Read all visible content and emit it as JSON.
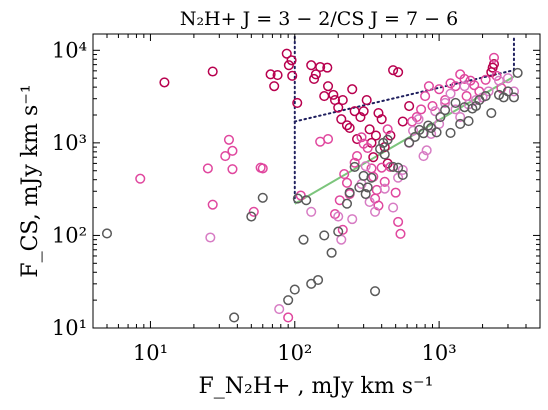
{
  "chart_data": {
    "type": "scatter",
    "title": "N₂H+ J = 3 − 2/CS J = 7 − 6",
    "xlabel": "F_N₂H+ , mJy km s⁻¹",
    "ylabel": "F_CS, mJy km s⁻¹",
    "xscale": "log",
    "yscale": "log",
    "xlim": [
      4,
      5000
    ],
    "ylim": [
      10,
      15000
    ],
    "xticks": [
      10,
      100,
      1000
    ],
    "xtick_labels": [
      "10¹",
      "10²",
      "10³"
    ],
    "yticks": [
      10,
      100,
      1000,
      10000
    ],
    "ytick_labels": [
      "10¹",
      "10²",
      "10³",
      "10⁴"
    ],
    "grid": false,
    "colors": {
      "crimson": "#b8004e",
      "pink": "#e0479e",
      "lightpink": "#d77cc4",
      "gray": "#5a5a5a",
      "fit_line": "#7cc57c",
      "dotted": "#1f1f5e"
    },
    "series": [
      {
        "color": "crimson",
        "points": [
          [
            12.5,
            4500
          ],
          [
            27,
            5900
          ],
          [
            68,
            5500
          ],
          [
            72,
            4100
          ],
          [
            76,
            5400
          ],
          [
            88,
            9200
          ],
          [
            91,
            6900
          ],
          [
            95,
            7800
          ],
          [
            96,
            5300
          ],
          [
            104,
            2700
          ],
          [
            130,
            6900
          ],
          [
            136,
            4900
          ],
          [
            140,
            5500
          ],
          [
            150,
            6600
          ],
          [
            160,
            3200
          ],
          [
            168,
            6500
          ],
          [
            170,
            4100
          ],
          [
            185,
            3300
          ],
          [
            190,
            2900
          ],
          [
            200,
            2400
          ],
          [
            210,
            1800
          ],
          [
            215,
            2900
          ],
          [
            230,
            1550
          ],
          [
            240,
            1450
          ],
          [
            250,
            3800
          ],
          [
            260,
            2200
          ],
          [
            270,
            1100
          ],
          [
            285,
            1900
          ],
          [
            300,
            2200
          ],
          [
            315,
            2900
          ],
          [
            330,
            1400
          ],
          [
            340,
            1000
          ],
          [
            350,
            700
          ],
          [
            365,
            1200
          ],
          [
            380,
            2100
          ],
          [
            400,
            1800
          ],
          [
            420,
            900
          ],
          [
            440,
            600
          ],
          [
            460,
            1200
          ],
          [
            480,
            6100
          ],
          [
            520,
            5800
          ],
          [
            560,
            1700
          ],
          [
            620,
            2500
          ],
          [
            2300,
            5800
          ],
          [
            2350,
            6500
          ],
          [
            2400,
            7100
          ]
        ]
      },
      {
        "color": "pink",
        "points": [
          [
            8.5,
            410
          ],
          [
            25,
            530
          ],
          [
            27,
            215
          ],
          [
            33,
            720
          ],
          [
            35,
            1080
          ],
          [
            37,
            820
          ],
          [
            37,
            520
          ],
          [
            52,
            180
          ],
          [
            58,
            540
          ],
          [
            60,
            530
          ],
          [
            90,
            13
          ],
          [
            110,
            270
          ],
          [
            150,
            1030
          ],
          [
            170,
            1100
          ],
          [
            190,
            170
          ],
          [
            205,
            240
          ],
          [
            215,
            115
          ],
          [
            220,
            460
          ],
          [
            230,
            370
          ],
          [
            240,
            280
          ],
          [
            260,
            610
          ],
          [
            270,
            720
          ],
          [
            290,
            1150
          ],
          [
            300,
            980
          ],
          [
            320,
            880
          ],
          [
            340,
            530
          ],
          [
            350,
            430
          ],
          [
            360,
            250
          ],
          [
            370,
            310
          ],
          [
            380,
            210
          ],
          [
            400,
            540
          ],
          [
            420,
            380
          ],
          [
            440,
            1400
          ],
          [
            460,
            550
          ],
          [
            500,
            290
          ],
          [
            520,
            140
          ],
          [
            540,
            104
          ],
          [
            650,
            1700
          ],
          [
            700,
            1900
          ],
          [
            750,
            2300
          ],
          [
            800,
            3200
          ],
          [
            850,
            4100
          ],
          [
            900,
            2500
          ],
          [
            1000,
            3800
          ],
          [
            1100,
            2900
          ],
          [
            1200,
            4400
          ],
          [
            1300,
            4100
          ],
          [
            1400,
            5500
          ],
          [
            1500,
            4900
          ],
          [
            1550,
            3200
          ],
          [
            1650,
            4700
          ],
          [
            1750,
            4200
          ],
          [
            1900,
            3600
          ],
          [
            2100,
            4800
          ],
          [
            2400,
            8300
          ],
          [
            2500,
            5300
          ],
          [
            2700,
            3900
          ]
        ]
      },
      {
        "color": "lightpink",
        "points": [
          [
            26,
            95
          ],
          [
            78,
            16
          ],
          [
            130,
            180
          ],
          [
            200,
            160
          ],
          [
            210,
            90
          ],
          [
            250,
            150
          ],
          [
            290,
            360
          ],
          [
            310,
            560
          ],
          [
            330,
            230
          ],
          [
            360,
            180
          ],
          [
            420,
            320
          ],
          [
            480,
            200
          ],
          [
            520,
            420
          ],
          [
            560,
            510
          ],
          [
            620,
            1000
          ],
          [
            660,
            1350
          ],
          [
            720,
            1800
          ],
          [
            780,
            720
          ],
          [
            820,
            830
          ],
          [
            880,
            1250
          ],
          [
            940,
            2200
          ],
          [
            1000,
            1600
          ],
          [
            1100,
            2700
          ],
          [
            1200,
            3400
          ],
          [
            1300,
            2300
          ],
          [
            1400,
            1900
          ],
          [
            1500,
            4100
          ],
          [
            1600,
            2600
          ],
          [
            1800,
            2900
          ],
          [
            2000,
            3100
          ],
          [
            2200,
            3600
          ],
          [
            2600,
            4700
          ],
          [
            3000,
            5000
          ],
          [
            3300,
            3600
          ]
        ]
      },
      {
        "color": "gray",
        "points": [
          [
            5,
            105
          ],
          [
            38,
            13
          ],
          [
            50,
            160
          ],
          [
            60,
            255
          ],
          [
            90,
            20
          ],
          [
            100,
            26
          ],
          [
            105,
            250
          ],
          [
            115,
            90
          ],
          [
            120,
            240
          ],
          [
            130,
            30
          ],
          [
            145,
            33
          ],
          [
            160,
            100
          ],
          [
            180,
            65
          ],
          [
            200,
            110
          ],
          [
            230,
            220
          ],
          [
            240,
            290
          ],
          [
            260,
            550
          ],
          [
            280,
            330
          ],
          [
            300,
            440
          ],
          [
            310,
            280
          ],
          [
            320,
            330
          ],
          [
            340,
            420
          ],
          [
            360,
            25
          ],
          [
            390,
            860
          ],
          [
            410,
            1000
          ],
          [
            420,
            750
          ],
          [
            440,
            1080
          ],
          [
            480,
            550
          ],
          [
            520,
            540
          ],
          [
            560,
            450
          ],
          [
            620,
            1010
          ],
          [
            680,
            1160
          ],
          [
            730,
            1380
          ],
          [
            780,
            1270
          ],
          [
            840,
            1540
          ],
          [
            880,
            1450
          ],
          [
            960,
            1300
          ],
          [
            1020,
            1900
          ],
          [
            1100,
            2260
          ],
          [
            1200,
            1280
          ],
          [
            1300,
            2700
          ],
          [
            1400,
            1600
          ],
          [
            1500,
            2430
          ],
          [
            1600,
            1720
          ],
          [
            1700,
            2350
          ],
          [
            1800,
            2500
          ],
          [
            1900,
            2900
          ],
          [
            2100,
            3200
          ],
          [
            2300,
            2100
          ],
          [
            2600,
            3300
          ],
          [
            2800,
            3100
          ],
          [
            3000,
            3600
          ],
          [
            3300,
            3100
          ],
          [
            3500,
            5700
          ]
        ]
      }
    ],
    "fit_line": {
      "color": "fit_line",
      "points": [
        [
          100,
          220
        ],
        [
          3300,
          5200
        ]
      ]
    },
    "dotted_lines": [
      {
        "points": [
          [
            100,
            14000
          ],
          [
            100,
            230
          ]
        ]
      },
      {
        "points": [
          [
            100,
            1700
          ],
          [
            3300,
            6100
          ]
        ]
      },
      {
        "points": [
          [
            3300,
            6100
          ],
          [
            3300,
            14000
          ]
        ]
      }
    ]
  }
}
